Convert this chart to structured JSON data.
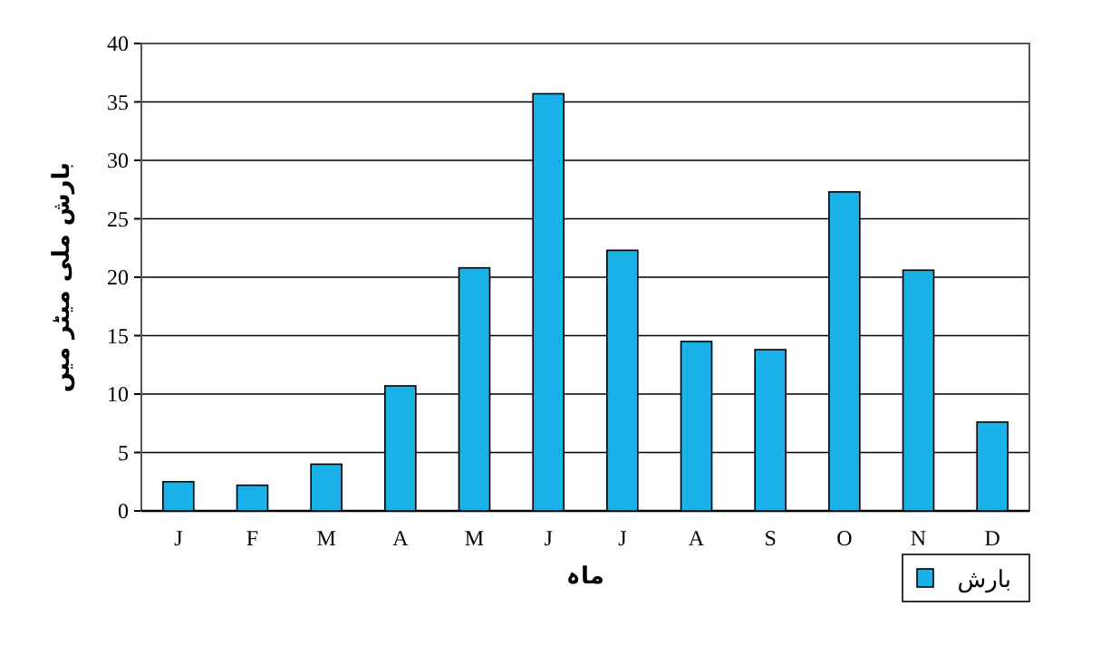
{
  "chart_data": {
    "type": "bar",
    "xlabel": "ماہ",
    "ylabel": "بارش ملی میٹر میں",
    "categories": [
      "J",
      "F",
      "M",
      "A",
      "M",
      "J",
      "J",
      "A",
      "S",
      "O",
      "N",
      "D"
    ],
    "series": [
      {
        "name": "بارش",
        "color": "#1ab0e8",
        "values": [
          2.5,
          2.2,
          4,
          10.7,
          20.8,
          35.7,
          22.3,
          14.5,
          13.8,
          27.3,
          20.6,
          7.6
        ]
      }
    ],
    "ylim": [
      0,
      40
    ],
    "yticks": [
      0,
      5,
      10,
      15,
      20,
      25,
      30,
      35,
      40
    ],
    "grid": "y",
    "legend": "bottom right"
  }
}
